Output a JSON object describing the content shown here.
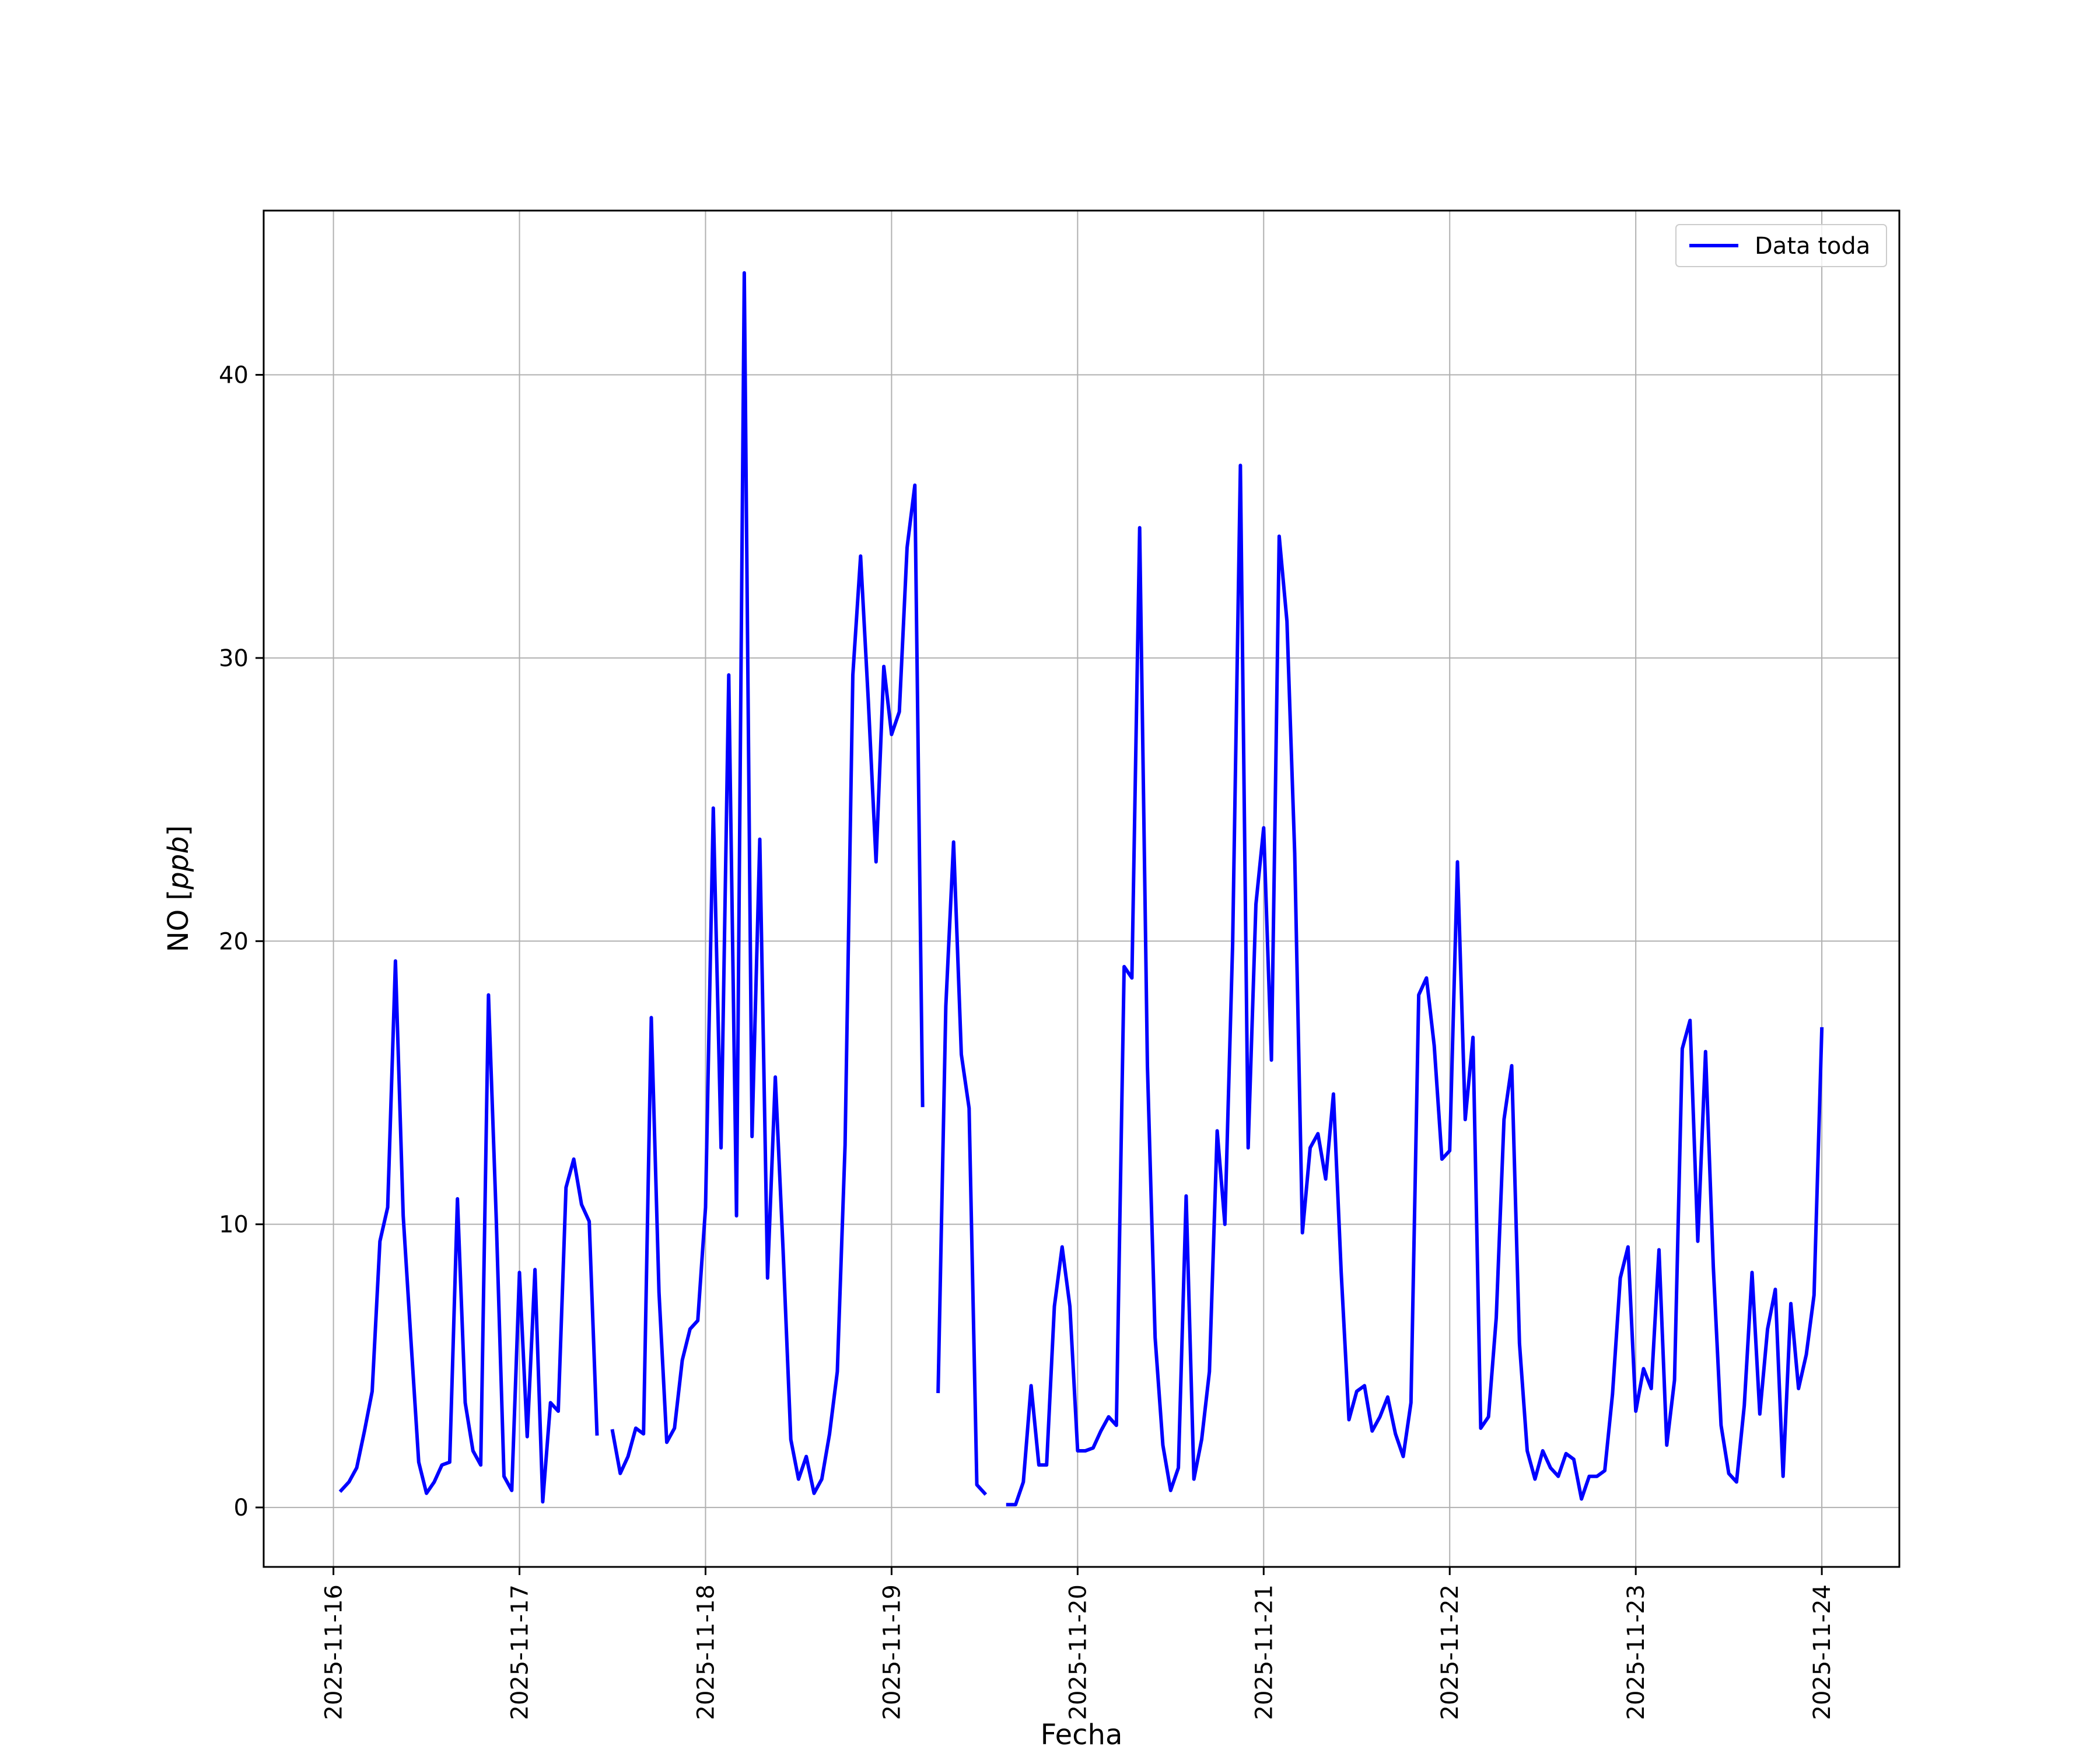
{
  "chart_data": {
    "type": "line",
    "title": "",
    "xlabel": "Fecha",
    "ylabel": "NO [ppb]",
    "ylabel_parts": {
      "prefix": "NO [",
      "unit": "ppb",
      "suffix": "]"
    },
    "xlim": [
      "2025-11-15T15:00",
      "2025-11-24T10:00"
    ],
    "ylim": [
      -2.1,
      45.8
    ],
    "xticks": [
      "2025-11-16",
      "2025-11-17",
      "2025-11-18",
      "2025-11-19",
      "2025-11-20",
      "2025-11-21",
      "2025-11-22",
      "2025-11-23",
      "2025-11-24"
    ],
    "yticks": [
      0,
      10,
      20,
      30,
      40
    ],
    "grid": true,
    "legend": {
      "position": "top-right",
      "entries": [
        "Data toda"
      ]
    },
    "colors": {
      "series": "#0000ff",
      "grid": "#b0b0b0",
      "frame": "#000000",
      "background": "#ffffff"
    },
    "series": [
      {
        "name": "Data toda",
        "segments": [
          [
            [
              "2025-11-16T01:00",
              0.6
            ],
            [
              "2025-11-16T02:00",
              0.9
            ],
            [
              "2025-11-16T03:00",
              1.4
            ],
            [
              "2025-11-16T04:00",
              2.7
            ],
            [
              "2025-11-16T05:00",
              4.1
            ],
            [
              "2025-11-16T06:00",
              9.4
            ],
            [
              "2025-11-16T07:00",
              10.6
            ],
            [
              "2025-11-16T08:00",
              19.3
            ],
            [
              "2025-11-16T09:00",
              10.3
            ],
            [
              "2025-11-16T10:00",
              5.9
            ],
            [
              "2025-11-16T11:00",
              1.6
            ],
            [
              "2025-11-16T12:00",
              0.5
            ],
            [
              "2025-11-16T13:00",
              0.9
            ],
            [
              "2025-11-16T14:00",
              1.5
            ],
            [
              "2025-11-16T15:00",
              1.6
            ],
            [
              "2025-11-16T16:00",
              10.9
            ],
            [
              "2025-11-16T17:00",
              3.7
            ],
            [
              "2025-11-16T18:00",
              2.0
            ],
            [
              "2025-11-16T19:00",
              1.5
            ],
            [
              "2025-11-16T20:00",
              18.1
            ],
            [
              "2025-11-16T21:00",
              10.2
            ],
            [
              "2025-11-16T22:00",
              1.1
            ],
            [
              "2025-11-16T23:00",
              0.6
            ],
            [
              "2025-11-17T00:00",
              8.3
            ],
            [
              "2025-11-17T01:00",
              2.5
            ],
            [
              "2025-11-17T02:00",
              8.4
            ],
            [
              "2025-11-17T03:00",
              0.2
            ],
            [
              "2025-11-17T04:00",
              3.7
            ],
            [
              "2025-11-17T05:00",
              3.4
            ],
            [
              "2025-11-17T06:00",
              11.3
            ],
            [
              "2025-11-17T07:00",
              12.3
            ],
            [
              "2025-11-17T08:00",
              10.7
            ],
            [
              "2025-11-17T09:00",
              10.1
            ],
            [
              "2025-11-17T10:00",
              2.6
            ]
          ],
          [
            [
              "2025-11-17T12:00",
              2.7
            ],
            [
              "2025-11-17T13:00",
              1.2
            ],
            [
              "2025-11-17T14:00",
              1.8
            ],
            [
              "2025-11-17T15:00",
              2.8
            ],
            [
              "2025-11-17T16:00",
              2.6
            ],
            [
              "2025-11-17T17:00",
              17.3
            ],
            [
              "2025-11-17T18:00",
              7.6
            ],
            [
              "2025-11-17T19:00",
              2.3
            ],
            [
              "2025-11-17T20:00",
              2.8
            ],
            [
              "2025-11-17T21:00",
              5.2
            ],
            [
              "2025-11-17T22:00",
              6.3
            ],
            [
              "2025-11-17T23:00",
              6.6
            ],
            [
              "2025-11-18T00:00",
              10.6
            ],
            [
              "2025-11-18T01:00",
              24.7
            ],
            [
              "2025-11-18T02:00",
              12.7
            ],
            [
              "2025-11-18T03:00",
              29.4
            ],
            [
              "2025-11-18T04:00",
              10.3
            ],
            [
              "2025-11-18T05:00",
              43.6
            ],
            [
              "2025-11-18T06:00",
              13.1
            ],
            [
              "2025-11-18T07:00",
              23.6
            ],
            [
              "2025-11-18T08:00",
              8.1
            ],
            [
              "2025-11-18T09:00",
              15.2
            ],
            [
              "2025-11-18T10:00",
              9.1
            ],
            [
              "2025-11-18T11:00",
              2.4
            ],
            [
              "2025-11-18T12:00",
              1.0
            ],
            [
              "2025-11-18T13:00",
              1.8
            ],
            [
              "2025-11-18T14:00",
              0.5
            ],
            [
              "2025-11-18T15:00",
              1.0
            ],
            [
              "2025-11-18T16:00",
              2.6
            ],
            [
              "2025-11-18T17:00",
              4.8
            ],
            [
              "2025-11-18T18:00",
              12.8
            ],
            [
              "2025-11-18T19:00",
              29.4
            ],
            [
              "2025-11-18T20:00",
              33.6
            ],
            [
              "2025-11-18T21:00",
              28.5
            ],
            [
              "2025-11-18T22:00",
              22.8
            ],
            [
              "2025-11-18T23:00",
              29.7
            ],
            [
              "2025-11-19T00:00",
              27.3
            ],
            [
              "2025-11-19T01:00",
              28.1
            ],
            [
              "2025-11-19T02:00",
              33.9
            ],
            [
              "2025-11-19T03:00",
              36.1
            ],
            [
              "2025-11-19T04:00",
              14.2
            ]
          ],
          [
            [
              "2025-11-19T06:00",
              4.1
            ],
            [
              "2025-11-19T07:00",
              17.7
            ],
            [
              "2025-11-19T08:00",
              23.5
            ],
            [
              "2025-11-19T09:00",
              16.0
            ],
            [
              "2025-11-19T10:00",
              14.1
            ],
            [
              "2025-11-19T11:00",
              0.8
            ],
            [
              "2025-11-19T12:00",
              0.5
            ]
          ],
          [
            [
              "2025-11-19T15:00",
              0.1
            ],
            [
              "2025-11-19T16:00",
              0.1
            ],
            [
              "2025-11-19T17:00",
              0.9
            ],
            [
              "2025-11-19T18:00",
              4.3
            ],
            [
              "2025-11-19T19:00",
              1.5
            ],
            [
              "2025-11-19T20:00",
              1.5
            ],
            [
              "2025-11-19T21:00",
              7.1
            ],
            [
              "2025-11-19T22:00",
              9.2
            ],
            [
              "2025-11-19T23:00",
              7.1
            ],
            [
              "2025-11-20T00:00",
              2.0
            ],
            [
              "2025-11-20T01:00",
              2.0
            ],
            [
              "2025-11-20T02:00",
              2.1
            ],
            [
              "2025-11-20T03:00",
              2.7
            ],
            [
              "2025-11-20T04:00",
              3.2
            ],
            [
              "2025-11-20T05:00",
              2.9
            ],
            [
              "2025-11-20T06:00",
              19.1
            ],
            [
              "2025-11-20T07:00",
              18.7
            ],
            [
              "2025-11-20T08:00",
              34.6
            ],
            [
              "2025-11-20T09:00",
              15.6
            ],
            [
              "2025-11-20T10:00",
              6.0
            ],
            [
              "2025-11-20T11:00",
              2.2
            ],
            [
              "2025-11-20T12:00",
              0.6
            ],
            [
              "2025-11-20T13:00",
              1.4
            ],
            [
              "2025-11-20T14:00",
              11.0
            ],
            [
              "2025-11-20T15:00",
              1.0
            ],
            [
              "2025-11-20T16:00",
              2.4
            ],
            [
              "2025-11-20T17:00",
              4.8
            ],
            [
              "2025-11-20T18:00",
              13.3
            ],
            [
              "2025-11-20T19:00",
              10.0
            ],
            [
              "2025-11-20T20:00",
              19.9
            ],
            [
              "2025-11-20T21:00",
              36.8
            ],
            [
              "2025-11-20T22:00",
              12.7
            ],
            [
              "2025-11-20T23:00",
              21.3
            ],
            [
              "2025-11-21T00:00",
              24.0
            ],
            [
              "2025-11-21T01:00",
              15.8
            ],
            [
              "2025-11-21T02:00",
              34.3
            ],
            [
              "2025-11-21T03:00",
              31.3
            ],
            [
              "2025-11-21T04:00",
              23.1
            ],
            [
              "2025-11-21T05:00",
              9.7
            ],
            [
              "2025-11-21T06:00",
              12.7
            ],
            [
              "2025-11-21T07:00",
              13.2
            ],
            [
              "2025-11-21T08:00",
              11.6
            ],
            [
              "2025-11-21T09:00",
              14.6
            ],
            [
              "2025-11-21T10:00",
              8.3
            ],
            [
              "2025-11-21T11:00",
              3.1
            ],
            [
              "2025-11-21T12:00",
              4.1
            ],
            [
              "2025-11-21T13:00",
              4.3
            ],
            [
              "2025-11-21T14:00",
              2.7
            ],
            [
              "2025-11-21T15:00",
              3.2
            ],
            [
              "2025-11-21T16:00",
              3.9
            ],
            [
              "2025-11-21T17:00",
              2.6
            ],
            [
              "2025-11-21T18:00",
              1.8
            ],
            [
              "2025-11-21T19:00",
              3.7
            ],
            [
              "2025-11-21T20:00",
              18.1
            ],
            [
              "2025-11-21T21:00",
              18.7
            ],
            [
              "2025-11-21T22:00",
              16.3
            ],
            [
              "2025-11-21T23:00",
              12.3
            ],
            [
              "2025-11-22T00:00",
              12.6
            ],
            [
              "2025-11-22T01:00",
              22.8
            ],
            [
              "2025-11-22T02:00",
              13.7
            ],
            [
              "2025-11-22T03:00",
              16.6
            ],
            [
              "2025-11-22T04:00",
              2.8
            ],
            [
              "2025-11-22T05:00",
              3.2
            ],
            [
              "2025-11-22T06:00",
              6.7
            ],
            [
              "2025-11-22T07:00",
              13.7
            ],
            [
              "2025-11-22T08:00",
              15.6
            ],
            [
              "2025-11-22T09:00",
              5.8
            ],
            [
              "2025-11-22T10:00",
              2.0
            ],
            [
              "2025-11-22T11:00",
              1.0
            ],
            [
              "2025-11-22T12:00",
              2.0
            ],
            [
              "2025-11-22T13:00",
              1.4
            ],
            [
              "2025-11-22T14:00",
              1.1
            ],
            [
              "2025-11-22T15:00",
              1.9
            ],
            [
              "2025-11-22T16:00",
              1.7
            ],
            [
              "2025-11-22T17:00",
              0.3
            ],
            [
              "2025-11-22T18:00",
              1.1
            ],
            [
              "2025-11-22T19:00",
              1.1
            ],
            [
              "2025-11-22T20:00",
              1.3
            ],
            [
              "2025-11-22T21:00",
              4.0
            ],
            [
              "2025-11-22T22:00",
              8.1
            ],
            [
              "2025-11-22T23:00",
              9.2
            ],
            [
              "2025-11-23T00:00",
              3.4
            ],
            [
              "2025-11-23T01:00",
              4.9
            ],
            [
              "2025-11-23T02:00",
              4.2
            ],
            [
              "2025-11-23T03:00",
              9.1
            ],
            [
              "2025-11-23T04:00",
              2.2
            ],
            [
              "2025-11-23T05:00",
              4.5
            ],
            [
              "2025-11-23T06:00",
              16.2
            ],
            [
              "2025-11-23T07:00",
              17.2
            ],
            [
              "2025-11-23T08:00",
              9.4
            ],
            [
              "2025-11-23T09:00",
              16.1
            ],
            [
              "2025-11-23T10:00",
              8.5
            ],
            [
              "2025-11-23T11:00",
              2.9
            ],
            [
              "2025-11-23T12:00",
              1.2
            ],
            [
              "2025-11-23T13:00",
              0.9
            ],
            [
              "2025-11-23T14:00",
              3.6
            ],
            [
              "2025-11-23T15:00",
              8.3
            ],
            [
              "2025-11-23T16:00",
              3.3
            ],
            [
              "2025-11-23T17:00",
              6.3
            ],
            [
              "2025-11-23T18:00",
              7.7
            ],
            [
              "2025-11-23T19:00",
              1.1
            ],
            [
              "2025-11-23T20:00",
              7.2
            ],
            [
              "2025-11-23T21:00",
              4.2
            ],
            [
              "2025-11-23T22:00",
              5.4
            ],
            [
              "2025-11-23T23:00",
              7.5
            ],
            [
              "2025-11-24T00:00",
              16.9
            ]
          ]
        ]
      }
    ]
  }
}
